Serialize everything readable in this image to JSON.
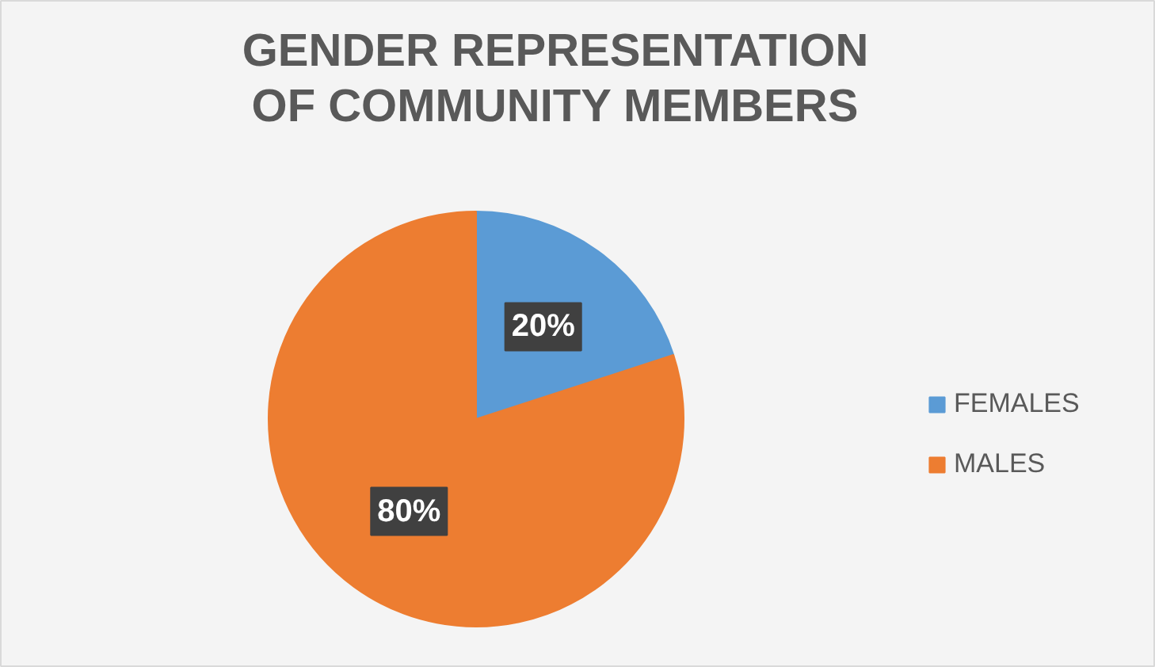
{
  "chart_data": {
    "type": "pie",
    "title": "GENDER REPRESENTATION OF COMMUNITY MEMBERS",
    "categories": [
      "FEMALES",
      "MALES"
    ],
    "values": [
      20,
      80
    ],
    "colors": [
      "#5b9bd5",
      "#ed7d31"
    ],
    "value_labels": [
      "20%",
      "80%"
    ],
    "legend": "right"
  }
}
